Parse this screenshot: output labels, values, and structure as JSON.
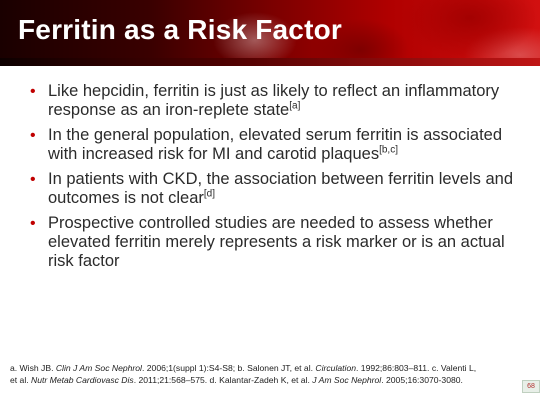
{
  "header": {
    "title": "Ferritin as a Risk Factor"
  },
  "bullets": [
    {
      "text": "Like hepcidin, ferritin is just as likely to reflect an inflammatory response as an iron-replete state",
      "ref": "[a]"
    },
    {
      "text": "In the general population, elevated serum ferritin is associated with increased risk for MI and carotid plaques",
      "ref": "[b,c]"
    },
    {
      "text": "In patients with CKD, the association between ferritin levels and outcomes is not clear",
      "ref": "[d]"
    },
    {
      "text": "Prospective controlled studies are needed to assess whether elevated ferritin merely represents a risk marker or is an actual risk factor",
      "ref": ""
    }
  ],
  "footnote": {
    "a_prefix": "a. Wish JB. ",
    "a_journal": "Clin J Am Soc Nephrol",
    "a_suffix": ". 2006;1(suppl 1):S4-S8; ",
    "b_prefix": "b. Salonen JT, et al. ",
    "b_journal": "Circulation",
    "b_suffix": ". 1992;86:803–811. ",
    "c_prefix": "c. Valenti L, et al. ",
    "c_journal": "Nutr Metab Cardiovasc Dis",
    "c_suffix": ". 2011;21:568–575. ",
    "d_prefix": "d. Kalantar-Zadeh K, et al. ",
    "d_journal": "J Am Soc Nephrol",
    "d_suffix": ". 2005;16:3070-3080."
  },
  "slide_number": "68",
  "colors": {
    "bullet": "#c00000",
    "banner_dark": "#1a0000",
    "banner_light": "#d21010"
  }
}
